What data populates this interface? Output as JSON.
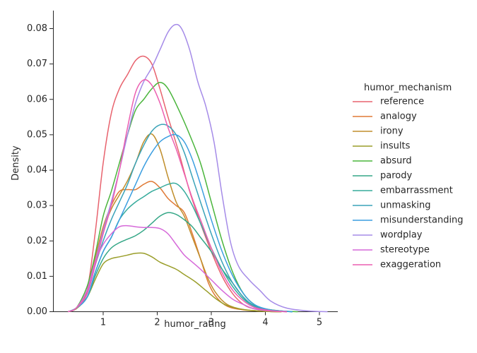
{
  "chart_data": {
    "type": "line",
    "title": "",
    "xlabel": "humor_rating",
    "ylabel": "Density",
    "xlim": [
      0.2,
      5.35
    ],
    "ylim": [
      0,
      0.085
    ],
    "xticks": [
      1,
      2,
      3,
      4,
      5
    ],
    "xtick_labels": [
      "1",
      "2",
      "3",
      "4",
      "5"
    ],
    "yticks": [
      0.0,
      0.01,
      0.02,
      0.03,
      0.04,
      0.05,
      0.06,
      0.07,
      0.08
    ],
    "ytick_labels": [
      "0.00",
      "0.01",
      "0.02",
      "0.03",
      "0.04",
      "0.05",
      "0.06",
      "0.07",
      "0.08"
    ],
    "grid": false,
    "legend": {
      "title": "humor_mechanism",
      "position": "right"
    },
    "series": [
      {
        "name": "reference",
        "color": "#e8636e",
        "points": [
          [
            0.35,
            0
          ],
          [
            0.5,
            0.001
          ],
          [
            0.7,
            0.006
          ],
          [
            0.85,
            0.022
          ],
          [
            1.0,
            0.042
          ],
          [
            1.15,
            0.056
          ],
          [
            1.3,
            0.063
          ],
          [
            1.45,
            0.067
          ],
          [
            1.6,
            0.071
          ],
          [
            1.75,
            0.0722
          ],
          [
            1.9,
            0.07
          ],
          [
            2.05,
            0.063
          ],
          [
            2.2,
            0.055
          ],
          [
            2.4,
            0.045
          ],
          [
            2.6,
            0.034
          ],
          [
            2.8,
            0.025
          ],
          [
            3.0,
            0.017
          ],
          [
            3.2,
            0.01
          ],
          [
            3.4,
            0.005
          ],
          [
            3.6,
            0.002
          ],
          [
            3.8,
            0.0008
          ],
          [
            4.1,
            0.0002
          ],
          [
            4.4,
            0
          ]
        ]
      },
      {
        "name": "analogy",
        "color": "#e07a36",
        "points": [
          [
            0.35,
            0
          ],
          [
            0.5,
            0.001
          ],
          [
            0.7,
            0.005
          ],
          [
            0.85,
            0.015
          ],
          [
            1.0,
            0.024
          ],
          [
            1.15,
            0.03
          ],
          [
            1.3,
            0.034
          ],
          [
            1.45,
            0.0345
          ],
          [
            1.6,
            0.0345
          ],
          [
            1.75,
            0.036
          ],
          [
            1.9,
            0.0368
          ],
          [
            2.05,
            0.035
          ],
          [
            2.2,
            0.032
          ],
          [
            2.35,
            0.03
          ],
          [
            2.5,
            0.028
          ],
          [
            2.65,
            0.022
          ],
          [
            2.8,
            0.015
          ],
          [
            2.95,
            0.008
          ],
          [
            3.1,
            0.004
          ],
          [
            3.3,
            0.0015
          ],
          [
            3.6,
            0.0005
          ],
          [
            4.0,
            0.0001
          ],
          [
            4.3,
            0
          ]
        ]
      },
      {
        "name": "irony",
        "color": "#c08e2c",
        "points": [
          [
            0.35,
            0
          ],
          [
            0.5,
            0.001
          ],
          [
            0.7,
            0.005
          ],
          [
            0.85,
            0.014
          ],
          [
            1.0,
            0.023
          ],
          [
            1.15,
            0.029
          ],
          [
            1.3,
            0.033
          ],
          [
            1.45,
            0.037
          ],
          [
            1.6,
            0.042
          ],
          [
            1.75,
            0.048
          ],
          [
            1.9,
            0.0502
          ],
          [
            2.05,
            0.046
          ],
          [
            2.2,
            0.038
          ],
          [
            2.35,
            0.031
          ],
          [
            2.5,
            0.027
          ],
          [
            2.65,
            0.021
          ],
          [
            2.8,
            0.015
          ],
          [
            2.95,
            0.009
          ],
          [
            3.1,
            0.005
          ],
          [
            3.3,
            0.002
          ],
          [
            3.6,
            0.0006
          ],
          [
            4.0,
            0.0001
          ],
          [
            4.3,
            0
          ]
        ]
      },
      {
        "name": "insults",
        "color": "#9a9e2a",
        "points": [
          [
            0.35,
            0
          ],
          [
            0.5,
            0.0008
          ],
          [
            0.7,
            0.004
          ],
          [
            0.85,
            0.009
          ],
          [
            1.0,
            0.0135
          ],
          [
            1.15,
            0.015
          ],
          [
            1.3,
            0.0155
          ],
          [
            1.45,
            0.016
          ],
          [
            1.6,
            0.0165
          ],
          [
            1.75,
            0.0165
          ],
          [
            1.9,
            0.0155
          ],
          [
            2.05,
            0.014
          ],
          [
            2.2,
            0.013
          ],
          [
            2.35,
            0.012
          ],
          [
            2.5,
            0.0105
          ],
          [
            2.7,
            0.0085
          ],
          [
            2.9,
            0.006
          ],
          [
            3.1,
            0.0035
          ],
          [
            3.3,
            0.0017
          ],
          [
            3.6,
            0.0006
          ],
          [
            4.0,
            0.0001
          ],
          [
            4.3,
            0
          ]
        ]
      },
      {
        "name": "absurd",
        "color": "#4ab53c",
        "points": [
          [
            0.35,
            0
          ],
          [
            0.5,
            0.001
          ],
          [
            0.7,
            0.007
          ],
          [
            0.85,
            0.016
          ],
          [
            1.0,
            0.027
          ],
          [
            1.15,
            0.034
          ],
          [
            1.3,
            0.042
          ],
          [
            1.45,
            0.05
          ],
          [
            1.6,
            0.057
          ],
          [
            1.75,
            0.06
          ],
          [
            1.9,
            0.063
          ],
          [
            2.05,
            0.0648
          ],
          [
            2.2,
            0.063
          ],
          [
            2.4,
            0.057
          ],
          [
            2.6,
            0.05
          ],
          [
            2.8,
            0.042
          ],
          [
            3.0,
            0.031
          ],
          [
            3.2,
            0.02
          ],
          [
            3.4,
            0.011
          ],
          [
            3.6,
            0.005
          ],
          [
            3.8,
            0.002
          ],
          [
            4.0,
            0.0008
          ],
          [
            4.3,
            0.0002
          ],
          [
            4.6,
            0
          ]
        ]
      },
      {
        "name": "parody",
        "color": "#35a787",
        "points": [
          [
            0.35,
            0
          ],
          [
            0.5,
            0.001
          ],
          [
            0.7,
            0.004
          ],
          [
            0.85,
            0.01
          ],
          [
            1.0,
            0.015
          ],
          [
            1.15,
            0.018
          ],
          [
            1.3,
            0.0195
          ],
          [
            1.45,
            0.0205
          ],
          [
            1.6,
            0.0215
          ],
          [
            1.75,
            0.023
          ],
          [
            1.9,
            0.025
          ],
          [
            2.05,
            0.027
          ],
          [
            2.2,
            0.028
          ],
          [
            2.35,
            0.0275
          ],
          [
            2.5,
            0.026
          ],
          [
            2.65,
            0.024
          ],
          [
            2.8,
            0.021
          ],
          [
            3.0,
            0.017
          ],
          [
            3.2,
            0.012
          ],
          [
            3.4,
            0.008
          ],
          [
            3.6,
            0.004
          ],
          [
            3.8,
            0.0017
          ],
          [
            4.1,
            0.0005
          ],
          [
            4.5,
            0
          ]
        ]
      },
      {
        "name": "embarrassment",
        "color": "#36ab9c",
        "points": [
          [
            0.35,
            0
          ],
          [
            0.5,
            0.001
          ],
          [
            0.7,
            0.004
          ],
          [
            0.85,
            0.011
          ],
          [
            1.0,
            0.017
          ],
          [
            1.15,
            0.021
          ],
          [
            1.3,
            0.026
          ],
          [
            1.45,
            0.029
          ],
          [
            1.6,
            0.031
          ],
          [
            1.75,
            0.0325
          ],
          [
            1.9,
            0.034
          ],
          [
            2.05,
            0.035
          ],
          [
            2.2,
            0.036
          ],
          [
            2.35,
            0.0362
          ],
          [
            2.5,
            0.034
          ],
          [
            2.65,
            0.03
          ],
          [
            2.8,
            0.025
          ],
          [
            3.0,
            0.018
          ],
          [
            3.2,
            0.012
          ],
          [
            3.4,
            0.007
          ],
          [
            3.6,
            0.0035
          ],
          [
            3.8,
            0.0015
          ],
          [
            4.1,
            0.0004
          ],
          [
            4.5,
            0
          ]
        ]
      },
      {
        "name": "unmasking",
        "color": "#3aa3b8",
        "points": [
          [
            0.35,
            0
          ],
          [
            0.5,
            0.001
          ],
          [
            0.7,
            0.005
          ],
          [
            0.85,
            0.013
          ],
          [
            1.0,
            0.02
          ],
          [
            1.15,
            0.026
          ],
          [
            1.3,
            0.031
          ],
          [
            1.45,
            0.036
          ],
          [
            1.6,
            0.042
          ],
          [
            1.75,
            0.047
          ],
          [
            1.9,
            0.051
          ],
          [
            2.05,
            0.0528
          ],
          [
            2.2,
            0.0525
          ],
          [
            2.35,
            0.05
          ],
          [
            2.5,
            0.045
          ],
          [
            2.65,
            0.038
          ],
          [
            2.8,
            0.031
          ],
          [
            3.0,
            0.022
          ],
          [
            3.2,
            0.014
          ],
          [
            3.4,
            0.008
          ],
          [
            3.6,
            0.004
          ],
          [
            3.8,
            0.0015
          ],
          [
            4.1,
            0.0004
          ],
          [
            4.5,
            0
          ]
        ]
      },
      {
        "name": "misunderstanding",
        "color": "#3b9ee0",
        "points": [
          [
            0.35,
            0
          ],
          [
            0.5,
            0.001
          ],
          [
            0.7,
            0.004
          ],
          [
            0.85,
            0.011
          ],
          [
            1.0,
            0.017
          ],
          [
            1.15,
            0.021
          ],
          [
            1.3,
            0.026
          ],
          [
            1.45,
            0.031
          ],
          [
            1.6,
            0.036
          ],
          [
            1.75,
            0.041
          ],
          [
            1.9,
            0.045
          ],
          [
            2.05,
            0.048
          ],
          [
            2.2,
            0.0495
          ],
          [
            2.35,
            0.05
          ],
          [
            2.5,
            0.048
          ],
          [
            2.65,
            0.043
          ],
          [
            2.8,
            0.036
          ],
          [
            3.0,
            0.026
          ],
          [
            3.2,
            0.017
          ],
          [
            3.4,
            0.01
          ],
          [
            3.6,
            0.005
          ],
          [
            3.8,
            0.002
          ],
          [
            4.1,
            0.0005
          ],
          [
            4.5,
            0
          ]
        ]
      },
      {
        "name": "wordplay",
        "color": "#a58be8",
        "points": [
          [
            0.35,
            0
          ],
          [
            0.5,
            0.001
          ],
          [
            0.7,
            0.005
          ],
          [
            0.85,
            0.014
          ],
          [
            1.0,
            0.023
          ],
          [
            1.15,
            0.031
          ],
          [
            1.3,
            0.04
          ],
          [
            1.45,
            0.05
          ],
          [
            1.6,
            0.059
          ],
          [
            1.75,
            0.065
          ],
          [
            1.9,
            0.069
          ],
          [
            2.05,
            0.074
          ],
          [
            2.2,
            0.079
          ],
          [
            2.33,
            0.0811
          ],
          [
            2.45,
            0.08
          ],
          [
            2.6,
            0.074
          ],
          [
            2.75,
            0.065
          ],
          [
            2.9,
            0.058
          ],
          [
            3.05,
            0.048
          ],
          [
            3.2,
            0.033
          ],
          [
            3.35,
            0.02
          ],
          [
            3.5,
            0.013
          ],
          [
            3.7,
            0.009
          ],
          [
            3.9,
            0.006
          ],
          [
            4.1,
            0.003
          ],
          [
            4.4,
            0.001
          ],
          [
            4.8,
            0.0002
          ],
          [
            5.15,
            0
          ]
        ]
      },
      {
        "name": "stereotype",
        "color": "#d669d9",
        "points": [
          [
            0.35,
            0
          ],
          [
            0.5,
            0.001
          ],
          [
            0.7,
            0.006
          ],
          [
            0.85,
            0.014
          ],
          [
            1.0,
            0.019
          ],
          [
            1.15,
            0.022
          ],
          [
            1.3,
            0.024
          ],
          [
            1.45,
            0.0243
          ],
          [
            1.6,
            0.024
          ],
          [
            1.75,
            0.0238
          ],
          [
            1.9,
            0.0238
          ],
          [
            2.05,
            0.0235
          ],
          [
            2.2,
            0.022
          ],
          [
            2.35,
            0.019
          ],
          [
            2.5,
            0.016
          ],
          [
            2.65,
            0.014
          ],
          [
            2.8,
            0.012
          ],
          [
            3.0,
            0.009
          ],
          [
            3.2,
            0.006
          ],
          [
            3.4,
            0.0035
          ],
          [
            3.6,
            0.002
          ],
          [
            3.8,
            0.0008
          ],
          [
            4.1,
            0.0002
          ],
          [
            4.4,
            0
          ]
        ]
      },
      {
        "name": "exaggeration",
        "color": "#ec5fb0",
        "points": [
          [
            0.35,
            0
          ],
          [
            0.5,
            0.001
          ],
          [
            0.7,
            0.005
          ],
          [
            0.85,
            0.013
          ],
          [
            1.0,
            0.022
          ],
          [
            1.15,
            0.03
          ],
          [
            1.3,
            0.04
          ],
          [
            1.45,
            0.052
          ],
          [
            1.6,
            0.062
          ],
          [
            1.75,
            0.0655
          ],
          [
            1.9,
            0.064
          ],
          [
            2.05,
            0.059
          ],
          [
            2.2,
            0.052
          ],
          [
            2.35,
            0.046
          ],
          [
            2.5,
            0.039
          ],
          [
            2.65,
            0.032
          ],
          [
            2.8,
            0.026
          ],
          [
            3.0,
            0.018
          ],
          [
            3.2,
            0.011
          ],
          [
            3.4,
            0.006
          ],
          [
            3.6,
            0.003
          ],
          [
            3.8,
            0.0012
          ],
          [
            4.1,
            0.0003
          ],
          [
            4.4,
            0
          ]
        ]
      }
    ]
  }
}
